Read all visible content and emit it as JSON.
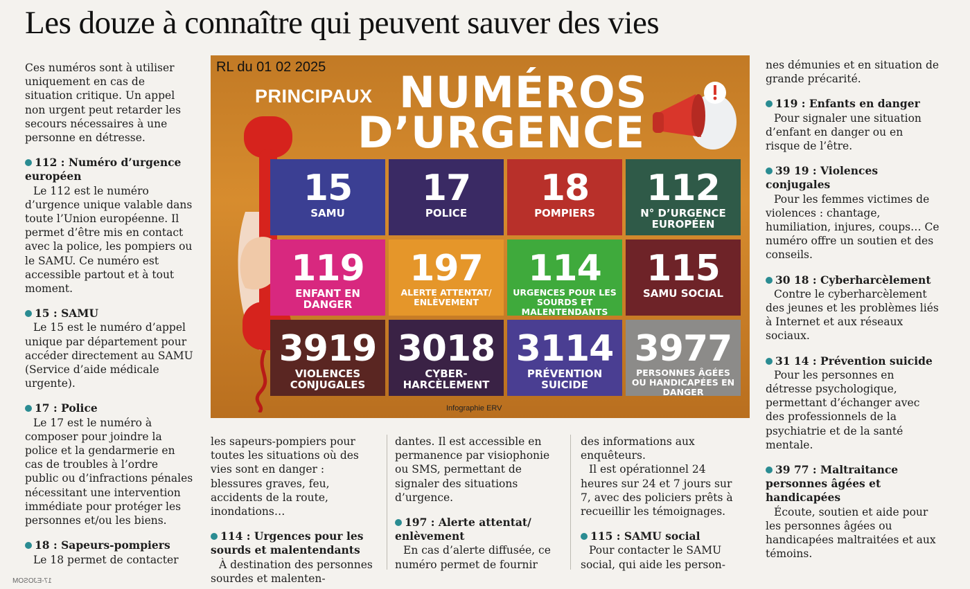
{
  "headline": "Les douze à connaître qui peuvent sauver des vies",
  "col1": {
    "intro": "Ces numéros sont à utiliser uniquement en cas de situation critique. Un appel non urgent peut retarder les secours nécessaires à une personne en détresse.",
    "s112_head": "112 : Numéro d’urgence européen",
    "s112_body": "Le 112 est le numéro d’urgence unique valable dans toute l’Union européenne. Il permet d’être mis en contact avec la police, les pompiers ou le SAMU. Ce numéro est accessible partout et à tout moment.",
    "s15_head": "15 : SAMU",
    "s15_body": "Le 15 est le numéro d’appel unique par département pour accéder directement au SAMU (Service d’aide médicale urgente).",
    "s17_head": "17 : Police",
    "s17_body": "Le 17 est le numéro à composer pour joindre la police et la gendarmerie en cas de troubles à l’ordre public ou d’infractions pénales nécessitant une intervention immédiate pour protéger les personnes et/ou les biens.",
    "s18_head": "18 : Sapeurs-pompiers",
    "s18_body": "Le 18 permet de contacter"
  },
  "col2": {
    "cont": "les sapeurs-pompiers pour toutes les situations où des vies sont en danger : blessures graves, feu, accidents de la route, inondations…",
    "s114_head": "114 : Urgences pour les sourds et malentendants",
    "s114_body": "À destination des personnes sourdes et malenten-"
  },
  "col3": {
    "cont": "dantes. Il est accessible en permanence par visiophonie ou SMS, permettant de signaler des situations d’urgence.",
    "s197_head": "197 : Alerte attentat/ enlèvement",
    "s197_body": "En cas d’alerte diffusée, ce numéro permet de fournir"
  },
  "col4": {
    "cont": "des informations aux enquêteurs.",
    "cont2": "Il est opérationnel 24 heures sur 24 et 7 jours sur 7, avec des policiers prêts à recueillir les témoignages.",
    "s115_head": "115 : SAMU social",
    "s115_body": "Pour contacter le SAMU social, qui aide les person-"
  },
  "col5": {
    "cont": "nes démunies et en situation de grande précarité.",
    "s119_head": "119 : Enfants en danger",
    "s119_body": "Pour signaler une situation d’enfant en danger ou en risque de l’être.",
    "s3919_head": "39 19 : Violences conjugales",
    "s3919_body": "Pour les femmes victimes de violences : chantage, humiliation, injures, coups… Ce numéro offre un soutien et des conseils.",
    "s3018_head": "30 18 : Cyberharcèlement",
    "s3018_body": "Contre le cyberharcèlement des jeunes et les problèmes liés à Internet et aux réseaux sociaux.",
    "s3114_head": "31 14 : Prévention suicide",
    "s3114_body": "Pour les personnes en détresse psychologique, permettant d’échanger avec des professionnels de la psychiatrie et de la santé mentale.",
    "s3977_head": "39 77 : Maltraitance personnes âgées et handicapées",
    "s3977_body": "Écoute, soutien et aide pour les personnes âgées ou handicapées maltraitées et aux témoins."
  },
  "infographic": {
    "stamp": "RL du 01 02 2025",
    "principaux": "PRINCIPAUX",
    "title1": "NUMÉROS",
    "title2": "D’URGENCE",
    "credit": "Infographie ERV",
    "tiles": [
      {
        "num": "15",
        "label": "SAMU",
        "color": "#3b3f93"
      },
      {
        "num": "17",
        "label": "POLICE",
        "color": "#3a2a64"
      },
      {
        "num": "18",
        "label": "POMPIERS",
        "color": "#b8302a"
      },
      {
        "num": "112",
        "label": "N° D’URGENCE EUROPÉEN",
        "color": "#2f5a48"
      },
      {
        "num": "119",
        "label": "ENFANT EN DANGER",
        "color": "#d8287f"
      },
      {
        "num": "197",
        "label": "ALERTE ATTENTAT/ ENLÈVEMENT",
        "color": "#e5962a"
      },
      {
        "num": "114",
        "label": "URGENCES POUR LES SOURDS ET MALENTENDANTS",
        "color": "#3faa3c"
      },
      {
        "num": "115",
        "label": "SAMU SOCIAL",
        "color": "#6e2328"
      },
      {
        "num": "3919",
        "label": "VIOLENCES CONJUGALES",
        "color": "#5a2622"
      },
      {
        "num": "3018",
        "label": "CYBER-HARCÈLEMENT",
        "color": "#3a2245"
      },
      {
        "num": "3114",
        "label": "PRÉVENTION SUICIDE",
        "color": "#4a3e92"
      },
      {
        "num": "3977",
        "label": "PERSONNES ÂGÉES OU HANDICAPÉES EN DANGER",
        "color": "#8c8b89"
      }
    ]
  },
  "footer": "17-EJOSOM"
}
